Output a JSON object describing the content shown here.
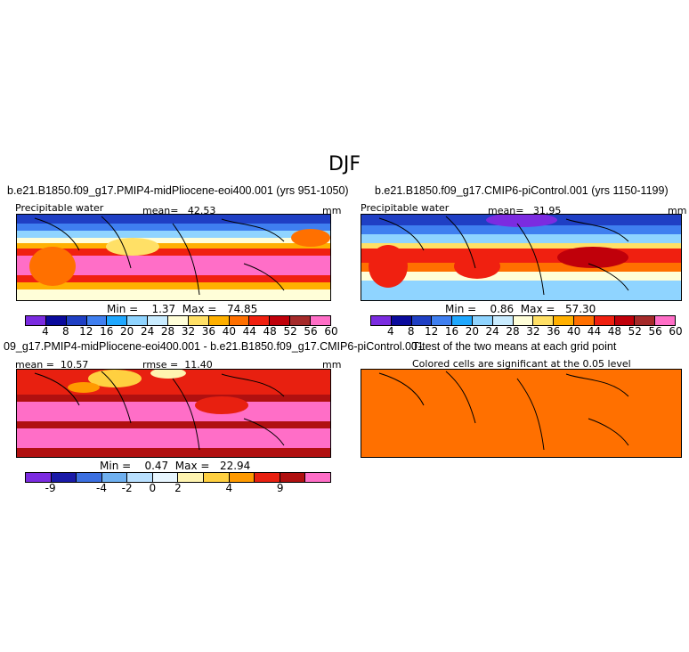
{
  "season": "DJF",
  "panels": {
    "p1": {
      "title": "b.e21.B1850.f09_g17.PMIP4-midPliocene-eoi400.001 (yrs 951-1050)",
      "variable": "Precipitable water",
      "mean_label": "mean=",
      "mean": "42.53",
      "units": "mm",
      "min_label": "Min =",
      "min": "1.37",
      "max_label": "Max =",
      "max": "74.85"
    },
    "p2": {
      "title": "b.e21.B1850.f09_g17.CMIP6-piControl.001 (yrs 1150-1199)",
      "variable": "Precipitable water",
      "mean_label": "mean=",
      "mean": "31.95",
      "units": "mm",
      "min_label": "Min =",
      "min": "0.86",
      "max_label": "Max =",
      "max": "57.30"
    },
    "p3": {
      "title": "09_g17.PMIP4-midPliocene-eoi400.001 - b.e21.B1850.f09_g17.CMIP6-piControl.001",
      "mean_label": "mean =",
      "mean": "10.57",
      "rmse_label": "rmse =",
      "rmse": "11.40",
      "units": "mm",
      "min_label": "Min =",
      "min": "0.47",
      "max_label": "Max =",
      "max": "22.94"
    },
    "p4": {
      "title": "T-test of the two means at each grid point",
      "subtitle": "Colored cells are significant at the 0.05 level"
    }
  },
  "colorbars": {
    "abs_colors": [
      "#7b2be0",
      "#0a0a9c",
      "#1f3fc4",
      "#3f7ff0",
      "#1fa8ff",
      "#8fd4ff",
      "#c9ecff",
      "#fffed8",
      "#ffe066",
      "#ffb000",
      "#ff7000",
      "#f02010",
      "#c0000a",
      "#a52a2a",
      "#ff6ec7"
    ],
    "abs_ticks": [
      "4",
      "8",
      "12",
      "16",
      "20",
      "24",
      "28",
      "32",
      "36",
      "40",
      "44",
      "48",
      "52",
      "56",
      "60"
    ],
    "diff_colors": [
      "#7b2be0",
      "#1a1aa8",
      "#3b6fe0",
      "#6fb0f0",
      "#b9e0ff",
      "#e8f6ff",
      "#fff4b0",
      "#ffd040",
      "#ff9a00",
      "#e82010",
      "#b01010",
      "#ff6ec7"
    ],
    "diff_ticks": [
      "-9",
      "-4",
      "-2",
      "0",
      "2",
      "4",
      "9"
    ]
  },
  "chart_data": [
    {
      "type": "heatmap",
      "title": "b.e21.B1850.f09_g17.PMIP4-midPliocene-eoi400.001 (yrs 951-1050)",
      "subtitle": "Precipitable water",
      "units": "mm",
      "mean": 42.53,
      "min": 1.37,
      "max": 74.85,
      "levels": [
        4,
        8,
        12,
        16,
        20,
        24,
        28,
        32,
        36,
        40,
        44,
        48,
        52,
        56,
        60
      ]
    },
    {
      "type": "heatmap",
      "title": "b.e21.B1850.f09_g17.CMIP6-piControl.001 (yrs 1150-1199)",
      "subtitle": "Precipitable water",
      "units": "mm",
      "mean": 31.95,
      "min": 0.86,
      "max": 57.3,
      "levels": [
        4,
        8,
        12,
        16,
        20,
        24,
        28,
        32,
        36,
        40,
        44,
        48,
        52,
        56,
        60
      ]
    },
    {
      "type": "heatmap",
      "title": "09_g17.PMIP4-midPliocene-eoi400.001 - b.e21.B1850.f09_g17.CMIP6-piControl.001",
      "units": "mm",
      "mean": 10.57,
      "rmse": 11.4,
      "min": 0.47,
      "max": 22.94,
      "levels": [
        -9,
        -4,
        -2,
        0,
        2,
        4,
        9
      ]
    },
    {
      "type": "heatmap",
      "title": "T-test of the two means at each grid point",
      "subtitle": "Colored cells are significant at the 0.05 level"
    }
  ]
}
